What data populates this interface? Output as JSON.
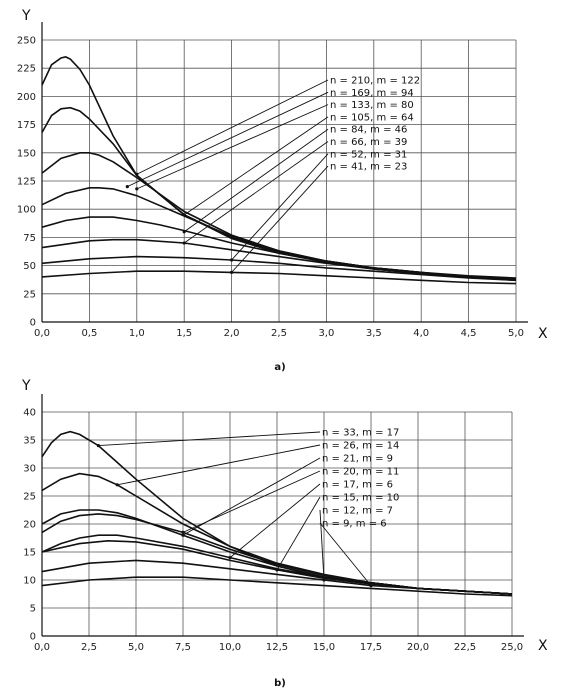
{
  "chart_data": [
    {
      "type": "line",
      "caption": "a)",
      "xlabel": "X",
      "ylabel": "Y",
      "xlim": [
        0,
        5
      ],
      "ylim": [
        0,
        250
      ],
      "xticks": [
        "0,0",
        "0,5",
        "1,0",
        "1,5",
        "2,0",
        "2,5",
        "3,0",
        "3,5",
        "4,0",
        "4,5",
        "5,0"
      ],
      "yticks": [
        "0",
        "25",
        "50",
        "75",
        "100",
        "125",
        "150",
        "175",
        "200",
        "225",
        "250"
      ],
      "grid": true,
      "legend_position": "right",
      "series": [
        {
          "name": "n = 210, m = 122",
          "x": [
            0,
            0.1,
            0.2,
            0.25,
            0.3,
            0.4,
            0.5,
            0.75,
            1.0,
            1.5,
            2.0,
            2.5,
            3.0,
            3.5,
            4.0,
            4.5,
            5.0
          ],
          "y": [
            210,
            228,
            234,
            235,
            233,
            224,
            210,
            165,
            130,
            95,
            75,
            62,
            54,
            48,
            44,
            41,
            39
          ],
          "label_x": 1.0,
          "label_y": 131
        },
        {
          "name": "n = 169, m = 94",
          "x": [
            0,
            0.1,
            0.2,
            0.3,
            0.4,
            0.5,
            0.75,
            1.0,
            1.5,
            2.0,
            2.5,
            3.0,
            3.5,
            4.0,
            4.5,
            5.0
          ],
          "y": [
            168,
            183,
            189,
            190,
            187,
            180,
            158,
            130,
            95,
            74,
            61,
            53,
            47,
            43,
            40,
            38
          ],
          "label_x": 0.9,
          "label_y": 120
        },
        {
          "name": "n = 133, m = 80",
          "x": [
            0,
            0.2,
            0.4,
            0.5,
            0.6,
            0.75,
            1.0,
            1.5,
            2.0,
            2.5,
            3.0,
            3.5,
            4.0,
            4.5,
            5.0
          ],
          "y": [
            132,
            145,
            150,
            150,
            148,
            142,
            128,
            98,
            77,
            63,
            54,
            48,
            44,
            40,
            38
          ],
          "label_x": 1.0,
          "label_y": 118
        },
        {
          "name": "n = 105, m = 64",
          "x": [
            0,
            0.25,
            0.5,
            0.6,
            0.75,
            1.0,
            1.5,
            2.0,
            2.5,
            3.0,
            3.5,
            4.0,
            4.5,
            5.0
          ],
          "y": [
            104,
            114,
            119,
            119,
            118,
            112,
            94,
            76,
            63,
            54,
            48,
            44,
            40,
            38
          ],
          "label_x": 1.5,
          "label_y": 95
        },
        {
          "name": "n = 84, m = 46",
          "x": [
            0,
            0.25,
            0.5,
            0.75,
            1.0,
            1.25,
            1.5,
            2.0,
            2.5,
            3.0,
            3.5,
            4.0,
            4.5,
            5.0
          ],
          "y": [
            84,
            90,
            93,
            93,
            90,
            86,
            81,
            70,
            61,
            53,
            47,
            43,
            40,
            37
          ],
          "label_x": 1.5,
          "label_y": 80
        },
        {
          "name": "n = 66, m = 39",
          "x": [
            0,
            0.5,
            0.75,
            1.0,
            1.5,
            2.0,
            2.5,
            3.0,
            3.5,
            4.0,
            4.5,
            5.0
          ],
          "y": [
            66,
            72,
            73,
            73,
            70,
            64,
            58,
            52,
            47,
            43,
            40,
            37
          ],
          "label_x": 1.5,
          "label_y": 70
        },
        {
          "name": "n = 52, m = 31",
          "x": [
            0,
            0.5,
            1.0,
            1.5,
            2.0,
            2.5,
            3.0,
            3.5,
            4.0,
            4.5,
            5.0
          ],
          "y": [
            52,
            56,
            58,
            57,
            55,
            52,
            48,
            45,
            42,
            39,
            37
          ],
          "label_x": 2.0,
          "label_y": 55
        },
        {
          "name": "n = 41, m = 23",
          "x": [
            0,
            0.5,
            1.0,
            1.5,
            2.0,
            2.5,
            3.0,
            3.5,
            4.0,
            4.5,
            5.0
          ],
          "y": [
            40,
            43,
            45,
            45,
            44,
            43,
            41,
            39,
            37,
            35,
            34
          ],
          "label_x": 2.0,
          "label_y": 44
        }
      ]
    },
    {
      "type": "line",
      "caption": "b)",
      "xlabel": "X",
      "ylabel": "Y",
      "xlim": [
        0,
        25
      ],
      "ylim": [
        0,
        40
      ],
      "xticks": [
        "0,0",
        "2,5",
        "5,0",
        "7,5",
        "10,0",
        "12,5",
        "15,0",
        "17,5",
        "20,0",
        "22,5",
        "25,0"
      ],
      "yticks": [
        "0",
        "5",
        "10",
        "15",
        "20",
        "25",
        "30",
        "35",
        "40"
      ],
      "grid": true,
      "legend_position": "right",
      "series": [
        {
          "name": "n = 33, m = 17",
          "x": [
            0,
            0.5,
            1.0,
            1.5,
            2.0,
            3.0,
            4.0,
            5.0,
            7.5,
            10.0,
            12.5,
            15.0,
            17.5,
            20.0,
            22.5,
            25.0
          ],
          "y": [
            32,
            34.5,
            36,
            36.5,
            36,
            34,
            31,
            28,
            21,
            16,
            12.5,
            10.5,
            9.5,
            8.5,
            8,
            7.5
          ],
          "label_x": 3.0,
          "label_y": 34
        },
        {
          "name": "n = 26, m = 14",
          "x": [
            0,
            1.0,
            2.0,
            3.0,
            4.0,
            5.0,
            7.5,
            10.0,
            12.5,
            15.0,
            17.5,
            20.0,
            22.5,
            25.0
          ],
          "y": [
            26,
            28,
            29,
            28.5,
            27,
            25,
            20,
            16,
            13,
            11,
            9.5,
            8.5,
            8,
            7.5
          ],
          "label_x": 4.0,
          "label_y": 27
        },
        {
          "name": "n = 21, m = 9",
          "x": [
            0,
            1.0,
            2.0,
            3.0,
            4.0,
            5.0,
            7.5,
            10.0,
            12.5,
            15.0,
            17.5,
            20.0,
            22.5,
            25.0
          ],
          "y": [
            20,
            21.8,
            22.5,
            22.5,
            22,
            21,
            18,
            15,
            12.5,
            10.5,
            9.5,
            8.5,
            8,
            7.5
          ],
          "label_x": 7.5,
          "label_y": 18
        },
        {
          "name": "n = 20, m = 11",
          "x": [
            0,
            1.0,
            2.0,
            3.0,
            4.0,
            5.0,
            7.5,
            10.0,
            12.5,
            15.0,
            17.5,
            20.0,
            22.5,
            25.0
          ],
          "y": [
            18.5,
            20.5,
            21.5,
            21.8,
            21.5,
            20.8,
            18.5,
            15.5,
            12.8,
            10.8,
            9.5,
            8.5,
            8,
            7.5
          ],
          "label_x": 7.5,
          "label_y": 18.5
        },
        {
          "name": "n = 17, m = 6",
          "x": [
            0,
            1.0,
            2.0,
            3.0,
            4.0,
            5.0,
            7.5,
            10.0,
            12.5,
            15.0,
            17.5,
            20.0,
            22.5,
            25.0
          ],
          "y": [
            15,
            16.5,
            17.5,
            18,
            18,
            17.5,
            16,
            14,
            12,
            10.5,
            9.5,
            8.5,
            8,
            7.5
          ],
          "label_x": 10.0,
          "label_y": 14
        },
        {
          "name": "n = 15, m = 10",
          "x": [
            0,
            2.0,
            3.5,
            5.0,
            7.5,
            10.0,
            12.5,
            15.0,
            17.5,
            20.0,
            22.5,
            25.0
          ],
          "y": [
            15,
            16.5,
            17,
            16.8,
            15.5,
            13.5,
            11.8,
            10.3,
            9.3,
            8.5,
            8,
            7.5
          ],
          "label_x": 12.5,
          "label_y": 11.8
        },
        {
          "name": "n = 12, m = 7",
          "x": [
            0,
            2.5,
            5.0,
            7.5,
            10.0,
            12.5,
            15.0,
            17.5,
            20.0,
            22.5,
            25.0
          ],
          "y": [
            11.5,
            13,
            13.5,
            13,
            12,
            11,
            10,
            9,
            8.5,
            8,
            7.5
          ],
          "label_x": 15.0,
          "label_y": 10
        },
        {
          "name": "n = 9, m = 6",
          "x": [
            0,
            2.5,
            5.0,
            7.5,
            10.0,
            12.5,
            15.0,
            17.5,
            20.0,
            22.5,
            25.0
          ],
          "y": [
            9,
            10,
            10.5,
            10.5,
            10,
            9.5,
            9,
            8.5,
            8,
            7.5,
            7.2
          ],
          "label_x": 17.5,
          "label_y": 9
        }
      ]
    }
  ]
}
